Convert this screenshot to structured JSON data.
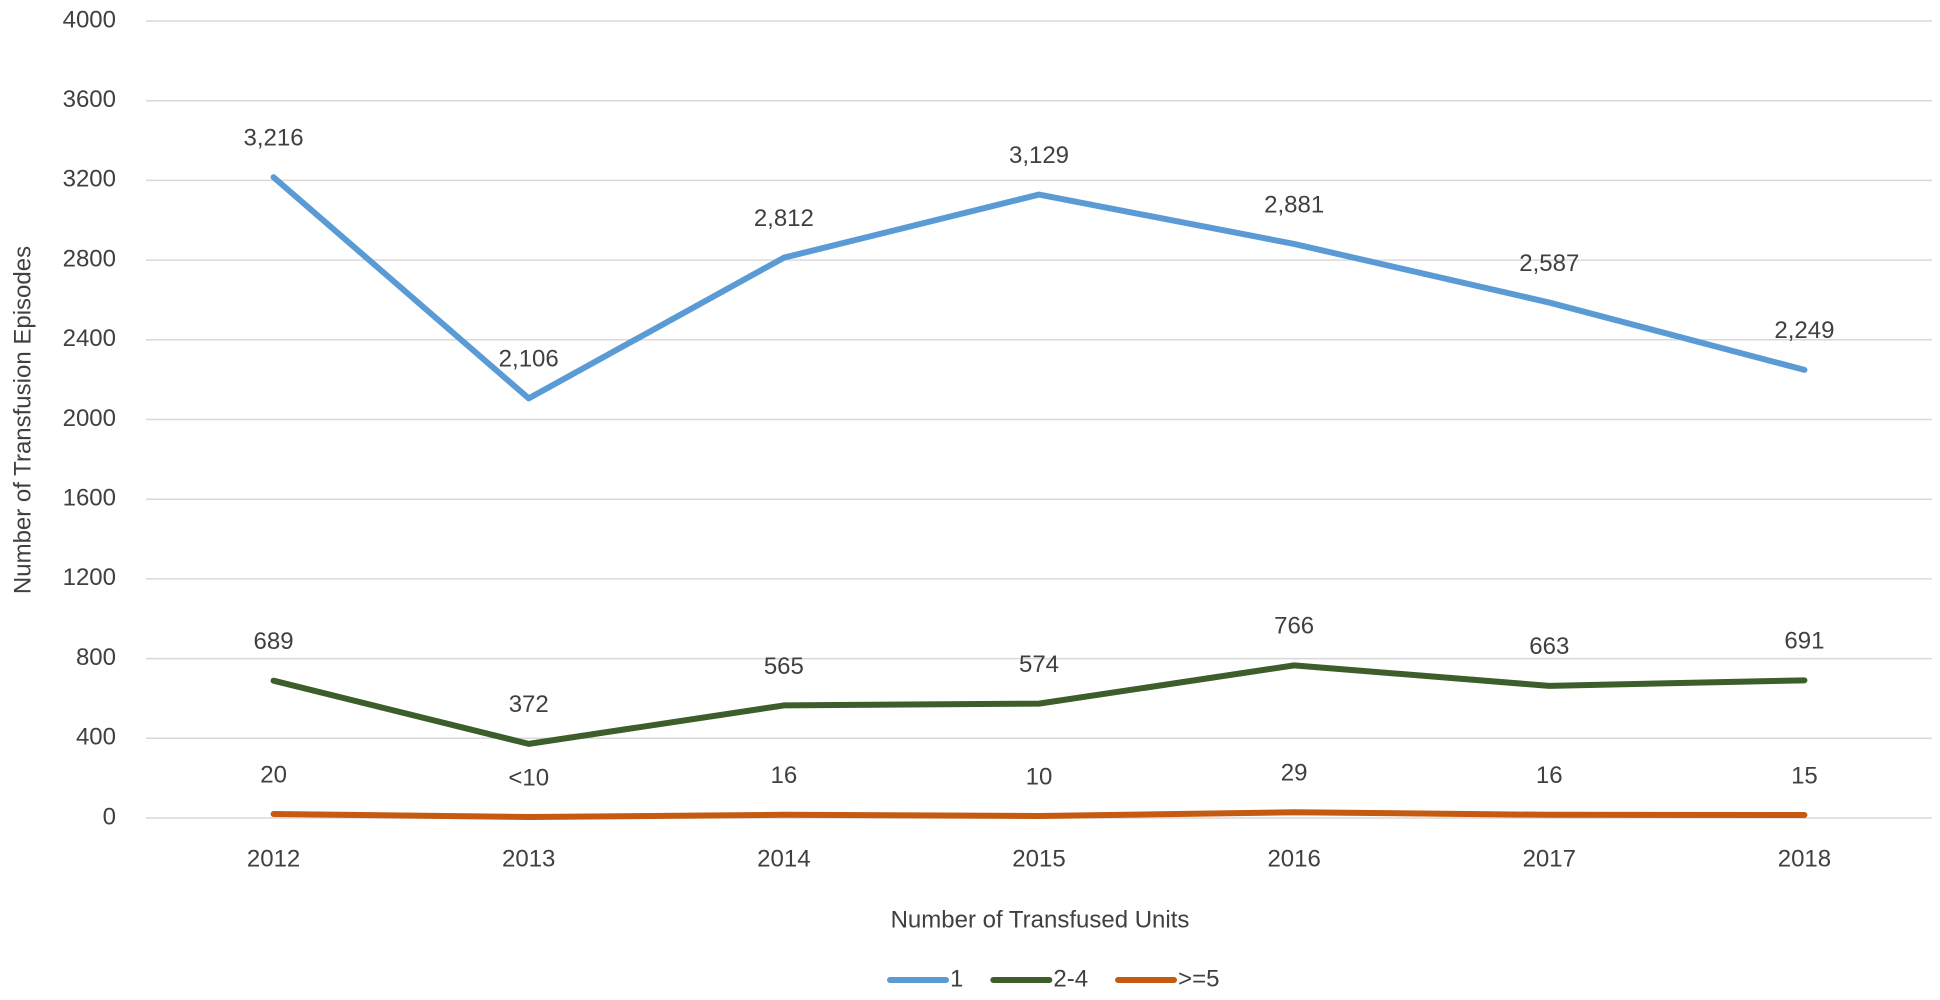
{
  "chart_data": {
    "type": "line",
    "x_label": "Number of Transfused Units",
    "y_label": "Number of Transfusion Episodes",
    "categories": [
      "2012",
      "2013",
      "2014",
      "2015",
      "2016",
      "2017",
      "2018"
    ],
    "series": [
      {
        "name": "1",
        "color": "#5b9bd5",
        "values": [
          3216,
          2106,
          2812,
          3129,
          2881,
          2587,
          2249
        ],
        "value_labels": [
          "3,216",
          "2,106",
          "2,812",
          "3,129",
          "2,881",
          "2,587",
          "2,249"
        ]
      },
      {
        "name": "2-4",
        "color": "#3b5e2b",
        "values": [
          689,
          372,
          565,
          574,
          766,
          663,
          691
        ]
      },
      {
        "name": ">=5",
        "color": "#c55a11",
        "values": [
          20,
          5,
          16,
          10,
          29,
          16,
          15
        ],
        "value_labels": [
          "20",
          "<10",
          "16",
          "10",
          "29",
          "16",
          "15"
        ]
      }
    ],
    "ylim": [
      0,
      4000
    ],
    "yticks": [
      0,
      400,
      800,
      1200,
      1600,
      2000,
      2400,
      2800,
      3200,
      3600,
      4000
    ],
    "grid": true,
    "legend": "bottom"
  }
}
